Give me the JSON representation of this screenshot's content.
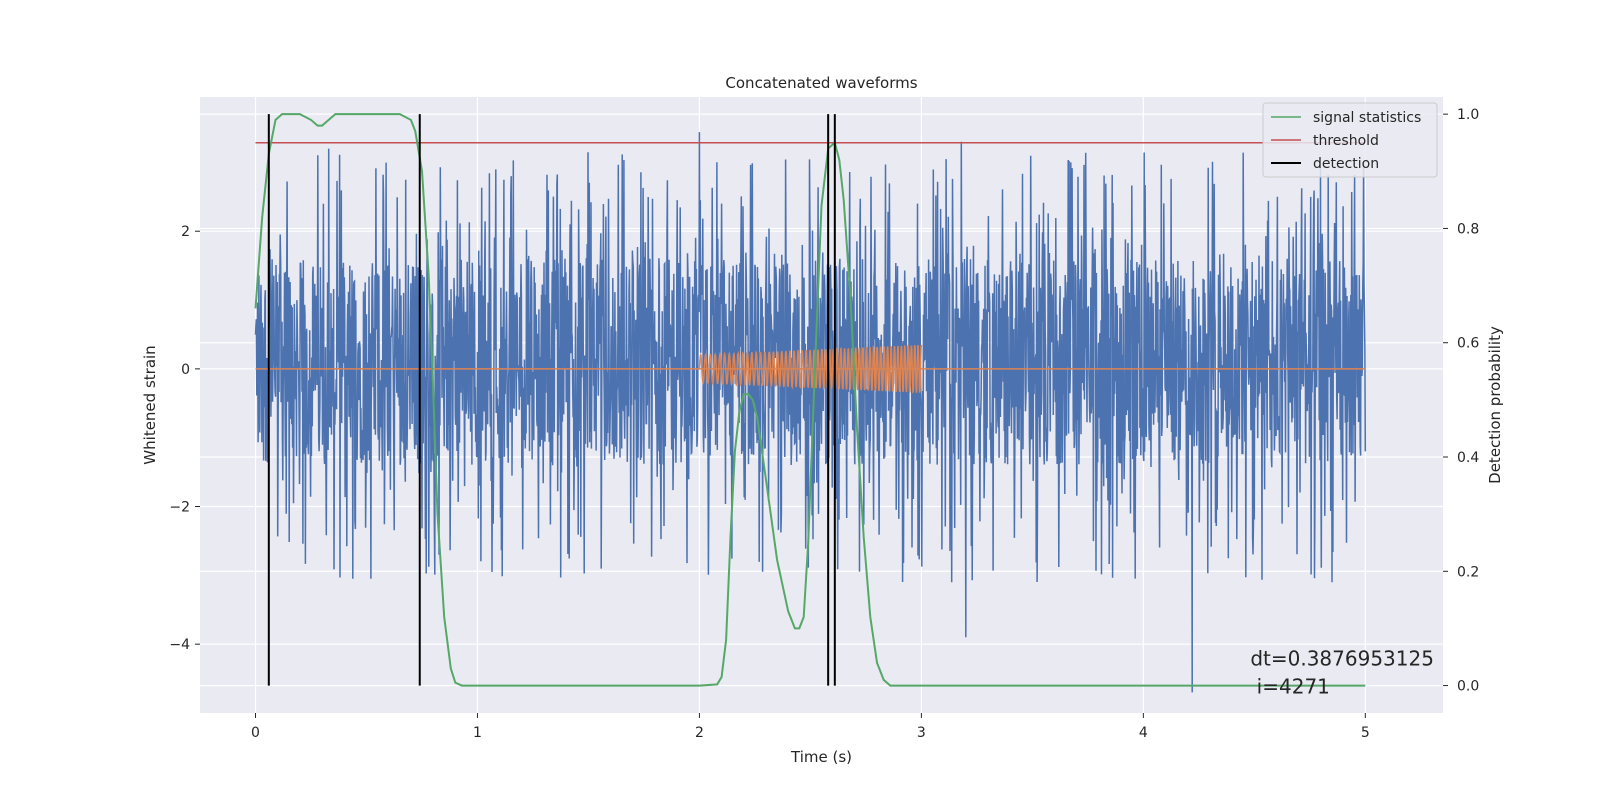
{
  "chart_data": {
    "type": "line",
    "title": "Concatenated waveforms",
    "xlabel": "Time (s)",
    "ylabel": "Whitened strain",
    "y2label": "Detection probability",
    "xlim": [
      -0.25,
      5.35
    ],
    "ylim": [
      -5.0,
      3.95
    ],
    "y2lim": [
      -0.048,
      1.03
    ],
    "xticks": [
      0,
      1,
      2,
      3,
      4,
      5
    ],
    "yticks": [
      -4,
      -2,
      0,
      2
    ],
    "y2ticks": [
      0.0,
      0.2,
      0.4,
      0.6,
      0.8,
      1.0
    ],
    "xtick_labels": [
      "0",
      "1",
      "2",
      "3",
      "4",
      "5"
    ],
    "ytick_labels": [
      "−4",
      "−2",
      "0",
      "2"
    ],
    "y2tick_labels": [
      "0.0",
      "0.2",
      "0.4",
      "0.6",
      "0.8",
      "1.0"
    ],
    "grid": true,
    "legend_position": "top-right",
    "legend": [
      {
        "label": "signal statistics",
        "color": "#55a868"
      },
      {
        "label": "threshold",
        "color": "#c44e52"
      },
      {
        "label": "detection",
        "color": "#000000"
      }
    ],
    "colors": {
      "background": "#eaeaf2",
      "grid": "#ffffff",
      "strain": "#4c72b0",
      "waveform": "#dd8452",
      "signal_statistics": "#55a868",
      "threshold": "#c44e52",
      "detection": "#000000"
    },
    "series": [
      {
        "name": "signal statistics",
        "axis": "right",
        "x": [
          0.0,
          0.03,
          0.06,
          0.09,
          0.12,
          0.15,
          0.2,
          0.25,
          0.28,
          0.3,
          0.33,
          0.36,
          0.4,
          0.5,
          0.6,
          0.65,
          0.7,
          0.72,
          0.75,
          0.78,
          0.8,
          0.82,
          0.85,
          0.88,
          0.9,
          0.93,
          1.0,
          1.5,
          2.0,
          2.08,
          2.1,
          2.12,
          2.14,
          2.16,
          2.18,
          2.2,
          2.22,
          2.24,
          2.26,
          2.3,
          2.35,
          2.4,
          2.43,
          2.45,
          2.47,
          2.49,
          2.52,
          2.55,
          2.58,
          2.61,
          2.63,
          2.65,
          2.68,
          2.71,
          2.74,
          2.77,
          2.8,
          2.83,
          2.86,
          2.9,
          3.0,
          4.0,
          5.0
        ],
        "y": [
          0.66,
          0.82,
          0.93,
          0.99,
          1.0,
          1.0,
          1.0,
          0.99,
          0.98,
          0.98,
          0.99,
          1.0,
          1.0,
          1.0,
          1.0,
          1.0,
          0.99,
          0.97,
          0.9,
          0.72,
          0.52,
          0.3,
          0.12,
          0.03,
          0.005,
          0.0,
          0.0,
          0.0,
          0.0,
          0.002,
          0.015,
          0.08,
          0.26,
          0.41,
          0.48,
          0.51,
          0.51,
          0.5,
          0.47,
          0.36,
          0.22,
          0.13,
          0.1,
          0.1,
          0.12,
          0.25,
          0.55,
          0.84,
          0.94,
          0.95,
          0.92,
          0.85,
          0.68,
          0.45,
          0.26,
          0.12,
          0.04,
          0.01,
          0.0,
          0.0,
          0.0,
          0.0,
          0.0
        ]
      },
      {
        "name": "threshold",
        "axis": "right",
        "x": [
          0.0,
          5.0
        ],
        "y": [
          0.95,
          0.95
        ]
      }
    ],
    "noise_series": {
      "name": "whitened strain",
      "axis": "left",
      "x_range": [
        0.0,
        5.0
      ],
      "typical_band": [
        -1.4,
        1.6
      ],
      "max": 3.44,
      "min": -4.7
    },
    "chirp_series": {
      "name": "injected waveform",
      "axis": "left",
      "x_range": [
        2.0,
        3.0
      ],
      "amplitude_start": 0.2,
      "amplitude_end": 0.35,
      "cycles": 45
    },
    "detections": {
      "name": "detection",
      "x": [
        0.06,
        0.74,
        2.58,
        2.61
      ]
    },
    "annotation": {
      "line1": "dt=0.3876953125",
      "line2": " i=4271",
      "x": 4.5,
      "y": -4.4
    }
  }
}
